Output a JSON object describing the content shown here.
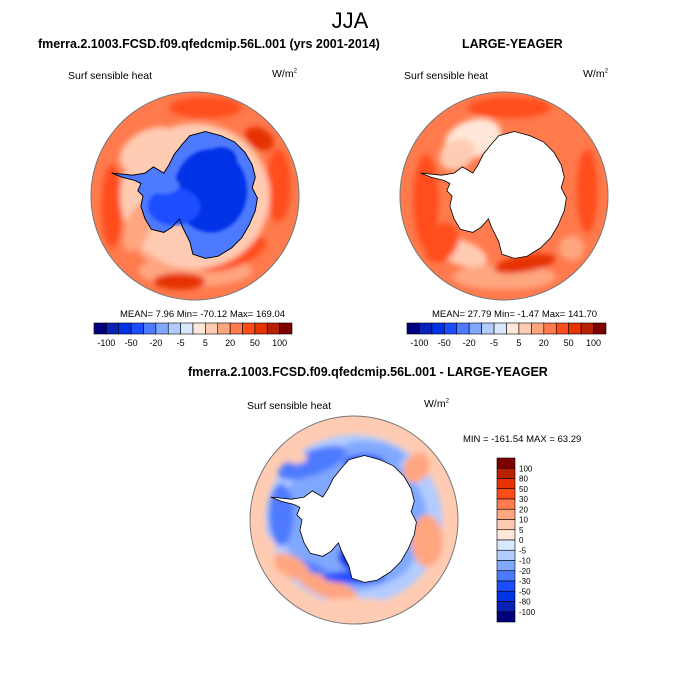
{
  "figure": {
    "title": "JJA"
  },
  "panels": [
    {
      "title": "fmerra.2.1003.FCSD.f09.qfedcmip.56L.001 (yrs 2001-2014)",
      "variable": "Surf sensible heat",
      "units": "W/m",
      "units_sup": "2",
      "stats": "MEAN=   7.96  Min= -70.12  Max= 169.04"
    },
    {
      "title": "LARGE-YEAGER",
      "variable": "Surf sensible heat",
      "units": "W/m",
      "units_sup": "2",
      "stats": "MEAN=  27.79  Min=  -1.47  Max= 141.70"
    },
    {
      "title": "fmerra.2.1003.FCSD.f09.qfedcmip.56L.001 - LARGE-YEAGER",
      "variable": "Surf sensible heat",
      "units": "W/m",
      "units_sup": "2",
      "stats": "MIN = -161.54 MAX =  63.29"
    }
  ],
  "chart_data": [
    {
      "type": "heatmap",
      "projection": "south-polar-stereographic",
      "title": "fmerra.2.1003.FCSD.f09.qfedcmip.56L.001 (yrs 2001-2014)",
      "variable": "Surf sensible heat",
      "units": "W/m2",
      "mean": 7.96,
      "min": -70.12,
      "max": 169.04,
      "colorbar": {
        "orientation": "horizontal",
        "levels": [
          -100,
          -80,
          -50,
          -30,
          -20,
          -10,
          -5,
          0,
          5,
          10,
          20,
          30,
          50,
          80,
          100
        ],
        "tick_labels": [
          "-100",
          "-50",
          "-20",
          "-5",
          "5",
          "20",
          "50",
          "100"
        ],
        "colors": [
          "#00007f",
          "#0a21b8",
          "#0033e6",
          "#1a4dff",
          "#4d7aff",
          "#80a8ff",
          "#b3ccff",
          "#d9e8ff",
          "#ffe8d9",
          "#ffccb3",
          "#ffa680",
          "#ff7a4d",
          "#ff4d1a",
          "#e63300",
          "#b82100",
          "#7f0000"
        ]
      },
      "regions": {
        "antarctica": "strongly negative (-20 to -50)",
        "ocean": "positive (20 to 80)"
      }
    },
    {
      "type": "heatmap",
      "projection": "south-polar-stereographic",
      "title": "LARGE-YEAGER",
      "variable": "Surf sensible heat",
      "units": "W/m2",
      "mean": 27.79,
      "min": -1.47,
      "max": 141.7,
      "colorbar": {
        "orientation": "horizontal",
        "levels": [
          -100,
          -80,
          -50,
          -30,
          -20,
          -10,
          -5,
          0,
          5,
          10,
          20,
          30,
          50,
          80,
          100
        ],
        "tick_labels": [
          "-100",
          "-50",
          "-20",
          "-5",
          "5",
          "20",
          "50",
          "100"
        ],
        "colors": [
          "#00007f",
          "#0a21b8",
          "#0033e6",
          "#1a4dff",
          "#4d7aff",
          "#80a8ff",
          "#b3ccff",
          "#d9e8ff",
          "#ffe8d9",
          "#ffccb3",
          "#ffa680",
          "#ff7a4d",
          "#ff4d1a",
          "#e63300",
          "#b82100",
          "#7f0000"
        ]
      },
      "regions": {
        "antarctica": "missing (white)",
        "ocean": "positive (20 to 80)"
      }
    },
    {
      "type": "heatmap",
      "projection": "south-polar-stereographic",
      "title": "fmerra.2.1003.FCSD.f09.qfedcmip.56L.001 - LARGE-YEAGER",
      "variable": "Surf sensible heat",
      "units": "W/m2",
      "min": -161.54,
      "max": 63.29,
      "colorbar": {
        "orientation": "vertical",
        "levels": [
          -100,
          -80,
          -50,
          -30,
          -20,
          -10,
          -5,
          0,
          5,
          10,
          20,
          30,
          50,
          80,
          100
        ],
        "tick_labels": [
          "100",
          "80",
          "50",
          "30",
          "20",
          "10",
          "5",
          "0",
          "-5",
          "-10",
          "-20",
          "-30",
          "-50",
          "-80",
          "-100"
        ],
        "colors": [
          "#00007f",
          "#0a21b8",
          "#0033e6",
          "#1a4dff",
          "#4d7aff",
          "#80a8ff",
          "#b3ccff",
          "#d9e8ff",
          "#ffe8d9",
          "#ffccb3",
          "#ffa680",
          "#ff7a4d",
          "#ff4d1a",
          "#e63300",
          "#b82100",
          "#7f0000"
        ]
      },
      "regions": {
        "antarctica": "missing (white)",
        "sea_ice_edge": "negative (-10 to -50)",
        "open_ocean": "slightly positive (5 to 20)"
      }
    }
  ]
}
